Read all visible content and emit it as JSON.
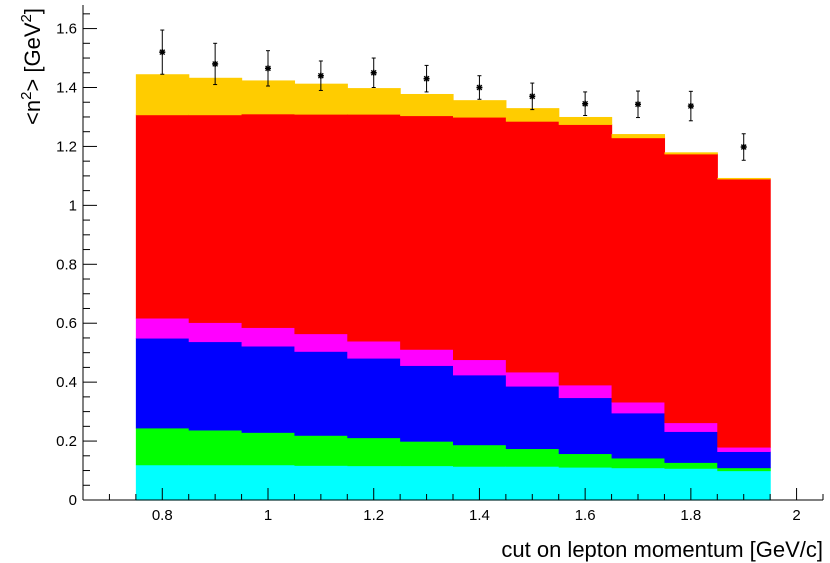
{
  "chart_data": {
    "type": "bar",
    "stacked": true,
    "title": "",
    "xlabel": "cut on lepton momentum [GeV/c]",
    "ylabel_main": "<n",
    "ylabel_sup1": "2",
    "ylabel_mid": ">  [GeV",
    "ylabel_sup2": "2",
    "ylabel_end": "]",
    "xlim": [
      0.65,
      2.05
    ],
    "ylim": [
      0,
      1.68
    ],
    "grid": false,
    "legend": "none",
    "x": [
      0.8,
      0.9,
      1.0,
      1.1,
      1.2,
      1.3,
      1.4,
      1.5,
      1.6,
      1.7,
      1.8,
      1.9
    ],
    "bin_width": 0.1,
    "xticks": [
      "0.8",
      "1",
      "1.2",
      "1.4",
      "1.6",
      "1.8",
      "2"
    ],
    "xtick_values": [
      0.8,
      1.0,
      1.2,
      1.4,
      1.6,
      1.8,
      2.0
    ],
    "yticks": [
      "0",
      "0.2",
      "0.4",
      "0.6",
      "0.8",
      "1",
      "1.2",
      "1.4",
      "1.6"
    ],
    "ytick_values": [
      0,
      0.2,
      0.4,
      0.6,
      0.8,
      1.0,
      1.2,
      1.4,
      1.6
    ],
    "series": [
      {
        "color": "#00ffff",
        "values": [
          0.12,
          0.12,
          0.12,
          0.118,
          0.117,
          0.117,
          0.115,
          0.115,
          0.112,
          0.11,
          0.108,
          0.1
        ]
      },
      {
        "color": "#00ff00",
        "values": [
          0.125,
          0.118,
          0.11,
          0.102,
          0.095,
          0.083,
          0.073,
          0.06,
          0.046,
          0.033,
          0.02,
          0.01
        ]
      },
      {
        "color": "#0000ff",
        "values": [
          0.305,
          0.3,
          0.293,
          0.285,
          0.27,
          0.257,
          0.237,
          0.212,
          0.19,
          0.153,
          0.105,
          0.055
        ]
      },
      {
        "color": "#ff00ff",
        "values": [
          0.068,
          0.065,
          0.063,
          0.06,
          0.058,
          0.055,
          0.052,
          0.048,
          0.043,
          0.037,
          0.03,
          0.015
        ]
      },
      {
        "color": "#ff0000",
        "values": [
          0.69,
          0.705,
          0.725,
          0.745,
          0.77,
          0.793,
          0.823,
          0.851,
          0.884,
          0.897,
          0.912,
          0.91
        ]
      },
      {
        "color": "#ffcc00",
        "values": [
          0.137,
          0.125,
          0.113,
          0.103,
          0.088,
          0.073,
          0.057,
          0.044,
          0.025,
          0.012,
          0.005,
          0.003
        ]
      }
    ],
    "data_points": {
      "marker": "star",
      "x": [
        0.8,
        0.9,
        1.0,
        1.1,
        1.2,
        1.3,
        1.4,
        1.5,
        1.6,
        1.7,
        1.8,
        1.9
      ],
      "y": [
        1.52,
        1.48,
        1.465,
        1.44,
        1.45,
        1.43,
        1.4,
        1.37,
        1.345,
        1.343,
        1.337,
        1.198
      ],
      "err": [
        0.075,
        0.07,
        0.06,
        0.05,
        0.05,
        0.045,
        0.04,
        0.045,
        0.04,
        0.045,
        0.05,
        0.045
      ]
    }
  }
}
